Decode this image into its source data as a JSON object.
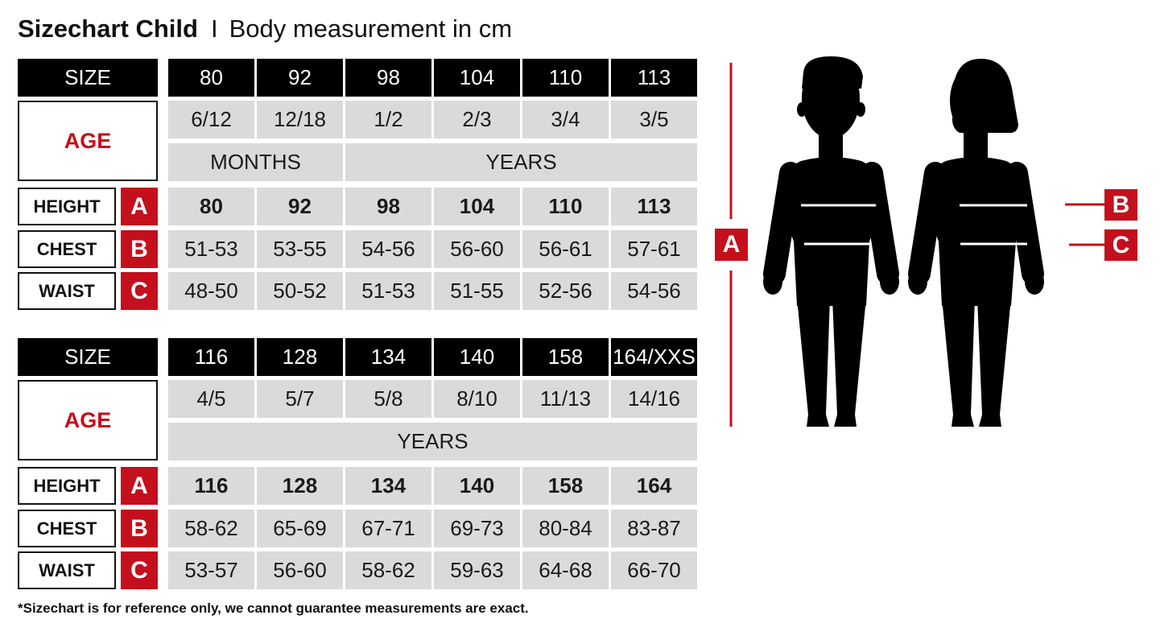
{
  "title": {
    "main": "Sizechart Child",
    "separator": "I",
    "subtitle": "Body measurement in cm"
  },
  "tables": [
    {
      "size_label": "SIZE",
      "sizes": [
        "80",
        "92",
        "98",
        "104",
        "110",
        "113"
      ],
      "age_label": "AGE",
      "ages": [
        "6/12",
        "12/18",
        "1/2",
        "2/3",
        "3/4",
        "3/5"
      ],
      "age_units": [
        {
          "label": "MONTHS",
          "span": 2
        },
        {
          "label": "YEARS",
          "span": 4
        }
      ],
      "rows": [
        {
          "label": "HEIGHT",
          "letter": "A",
          "bold": true,
          "values": [
            "80",
            "92",
            "98",
            "104",
            "110",
            "113"
          ]
        },
        {
          "label": "CHEST",
          "letter": "B",
          "bold": false,
          "values": [
            "51-53",
            "53-55",
            "54-56",
            "56-60",
            "56-61",
            "57-61"
          ]
        },
        {
          "label": "WAIST",
          "letter": "C",
          "bold": false,
          "values": [
            "48-50",
            "50-52",
            "51-53",
            "51-55",
            "52-56",
            "54-56"
          ]
        }
      ]
    },
    {
      "size_label": "SIZE",
      "sizes": [
        "116",
        "128",
        "134",
        "140",
        "158",
        "164/XXS"
      ],
      "age_label": "AGE",
      "ages": [
        "4/5",
        "5/7",
        "5/8",
        "8/10",
        "11/13",
        "14/16"
      ],
      "age_units": [
        {
          "label": "YEARS",
          "span": 6
        }
      ],
      "rows": [
        {
          "label": "HEIGHT",
          "letter": "A",
          "bold": true,
          "values": [
            "116",
            "128",
            "134",
            "140",
            "158",
            "164"
          ]
        },
        {
          "label": "CHEST",
          "letter": "B",
          "bold": false,
          "values": [
            "58-62",
            "65-69",
            "67-71",
            "69-73",
            "80-84",
            "83-87"
          ]
        },
        {
          "label": "WAIST",
          "letter": "C",
          "bold": false,
          "values": [
            "53-57",
            "56-60",
            "58-62",
            "59-63",
            "64-68",
            "66-70"
          ]
        }
      ]
    }
  ],
  "figure": {
    "height_letter": "A",
    "chest_letter": "B",
    "waist_letter": "C",
    "accent_color": "#c40f1c"
  },
  "footnote": "*Sizechart is for reference only, we cannot guarantee measurements are exact."
}
